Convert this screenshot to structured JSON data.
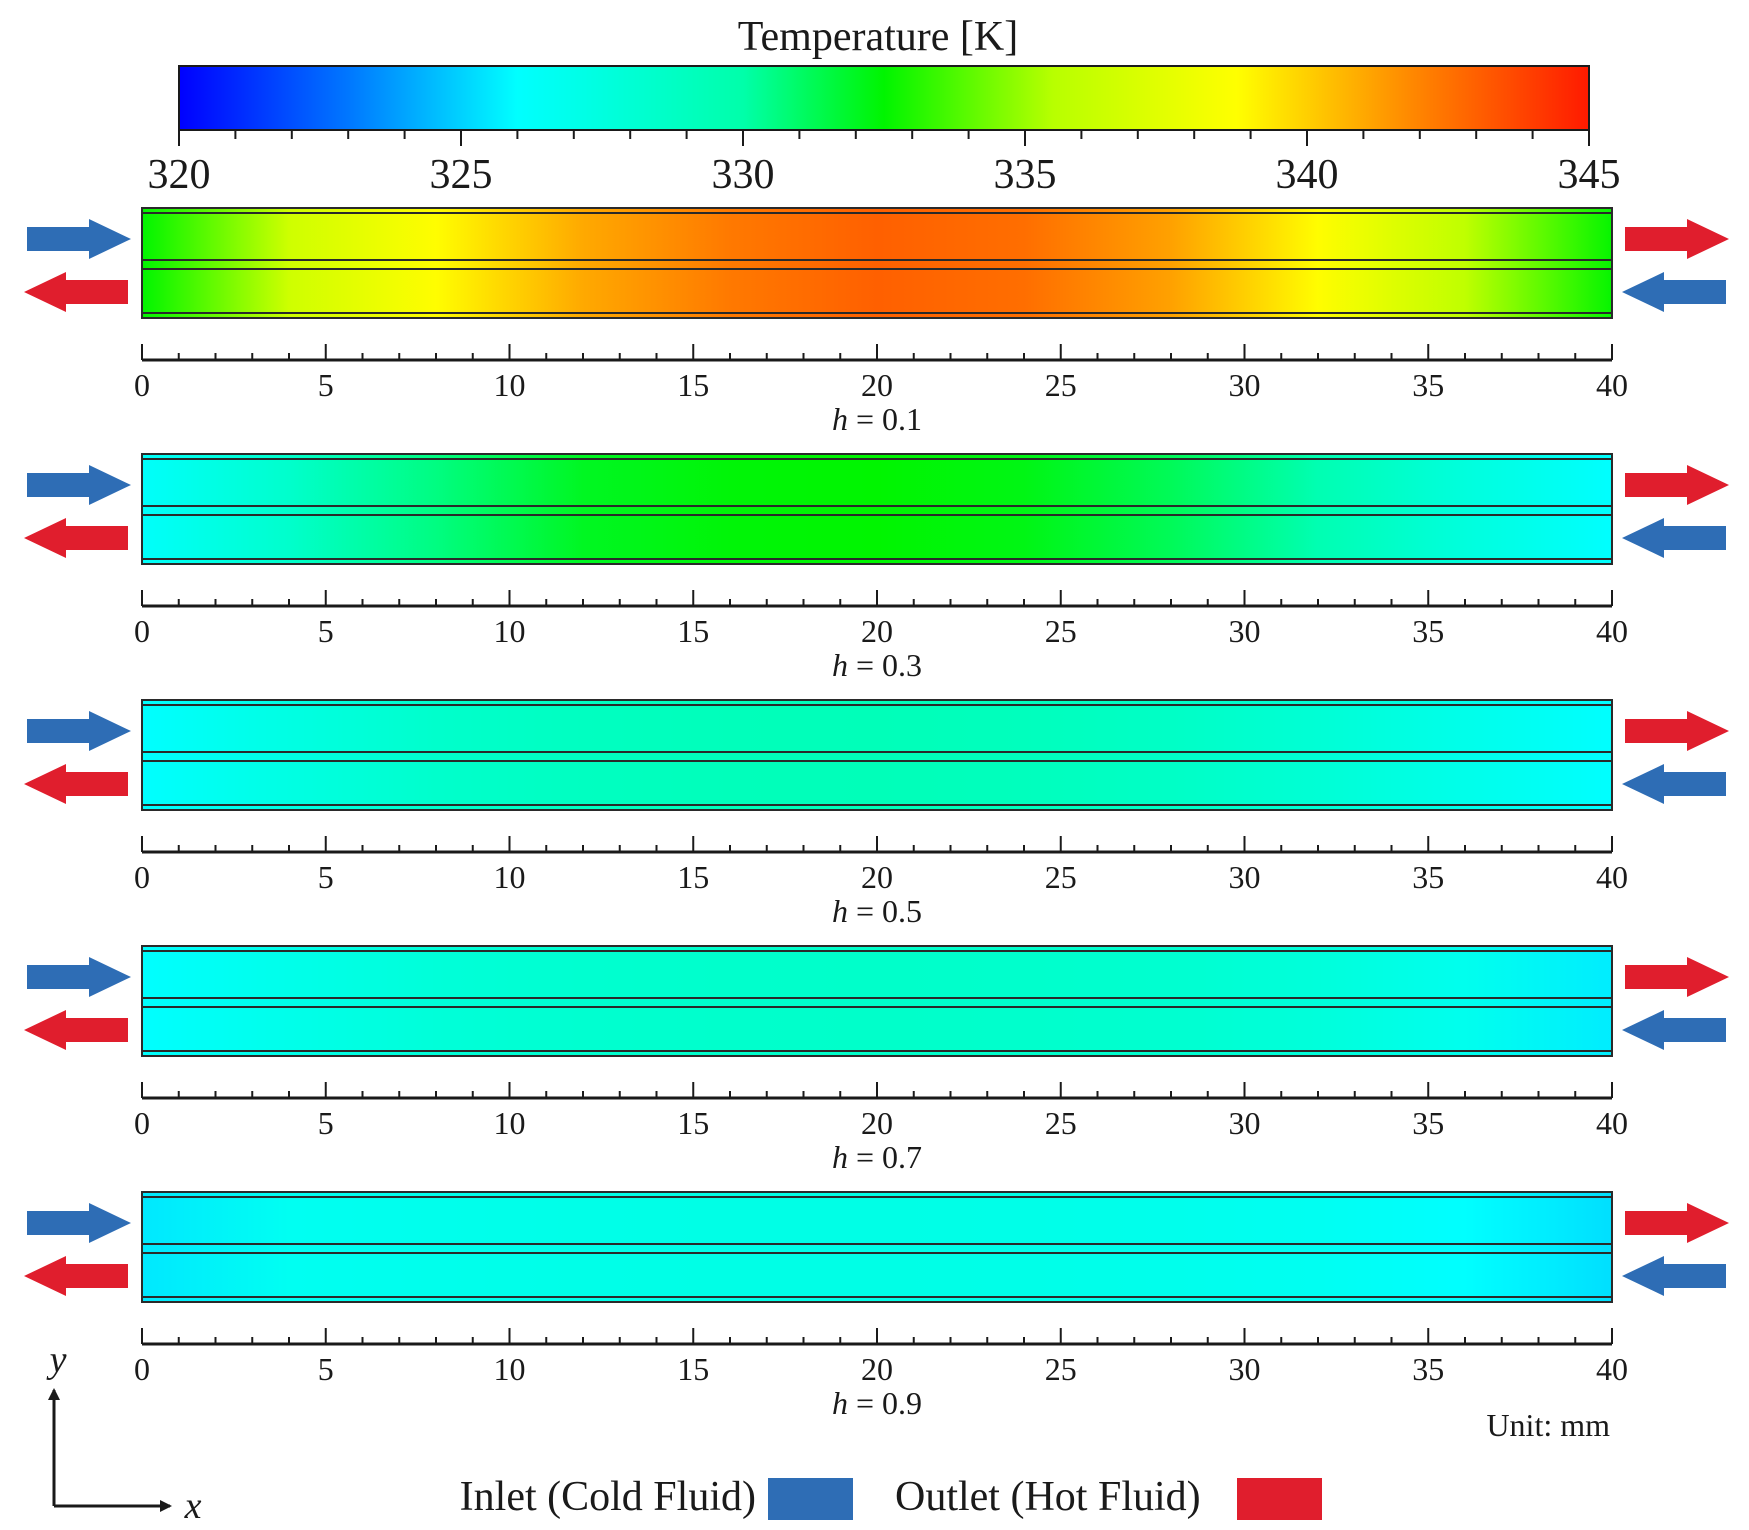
{
  "colorbar": {
    "title": "Temperature [K]",
    "min": 320,
    "max": 345,
    "tick_labels": [
      "320",
      "325",
      "330",
      "335",
      "340",
      "345"
    ],
    "stops": [
      {
        "t": 0.0,
        "color": "#0000ff"
      },
      {
        "t": 0.12,
        "color": "#0077ff"
      },
      {
        "t": 0.24,
        "color": "#00ffff"
      },
      {
        "t": 0.4,
        "color": "#00ffaa"
      },
      {
        "t": 0.5,
        "color": "#00f500"
      },
      {
        "t": 0.62,
        "color": "#b8ff00"
      },
      {
        "t": 0.75,
        "color": "#ffff00"
      },
      {
        "t": 0.87,
        "color": "#ff8c00"
      },
      {
        "t": 1.0,
        "color": "#ff1a00"
      }
    ]
  },
  "axis": {
    "ticks": [
      0,
      5,
      10,
      15,
      20,
      25,
      30,
      35,
      40
    ],
    "tick_labels": [
      "0",
      "5",
      "10",
      "15",
      "20",
      "25",
      "30",
      "35",
      "40"
    ],
    "min": 0,
    "max": 40
  },
  "panels": [
    {
      "h_label": "h = 0.1",
      "h_var": "h",
      "h_value": "0.1",
      "profile_x": [
        0,
        4,
        8,
        12,
        16,
        20,
        24,
        28,
        32,
        36,
        40
      ],
      "profile_K": [
        332.5,
        336.5,
        338.8,
        341.0,
        342.3,
        343.0,
        342.6,
        341.2,
        338.8,
        335.8,
        332.6
      ]
    },
    {
      "h_label": "h = 0.3",
      "h_var": "h",
      "h_value": "0.3",
      "profile_x": [
        0,
        4,
        8,
        12,
        16,
        20,
        24,
        28,
        32,
        36,
        40
      ],
      "profile_K": [
        326.2,
        328.4,
        330.6,
        332.0,
        332.4,
        332.5,
        332.2,
        331.2,
        329.6,
        327.6,
        326.0
      ]
    },
    {
      "h_label": "h = 0.5",
      "h_var": "h",
      "h_value": "0.5",
      "profile_x": [
        0,
        4,
        8,
        12,
        16,
        20,
        24,
        28,
        32,
        36,
        40
      ],
      "profile_K": [
        326.0,
        327.3,
        328.4,
        328.9,
        329.2,
        329.3,
        329.1,
        328.7,
        328.0,
        327.0,
        326.0
      ]
    },
    {
      "h_label": "h = 0.7",
      "h_var": "h",
      "h_value": "0.7",
      "profile_x": [
        0,
        4,
        8,
        12,
        16,
        20,
        24,
        28,
        32,
        36,
        40
      ],
      "profile_K": [
        326.0,
        327.0,
        327.8,
        328.2,
        328.4,
        328.5,
        328.4,
        328.2,
        327.7,
        326.8,
        325.6
      ]
    },
    {
      "h_label": "h = 0.9",
      "h_var": "h",
      "h_value": "0.9",
      "profile_x": [
        0,
        4,
        8,
        12,
        16,
        20,
        24,
        28,
        32,
        36,
        40
      ],
      "profile_K": [
        325.5,
        326.6,
        326.9,
        327.1,
        327.2,
        327.2,
        327.1,
        326.9,
        326.6,
        326.0,
        325.3
      ]
    }
  ],
  "unit_label": "Unit: mm",
  "coord_axes": {
    "x": "x",
    "y": "y"
  },
  "legend": {
    "inlet_label": "Inlet (Cold Fluid)",
    "outlet_label": "Outlet (Hot Fluid)",
    "inlet_color": "#2e6db5",
    "outlet_color": "#e01e2d"
  }
}
